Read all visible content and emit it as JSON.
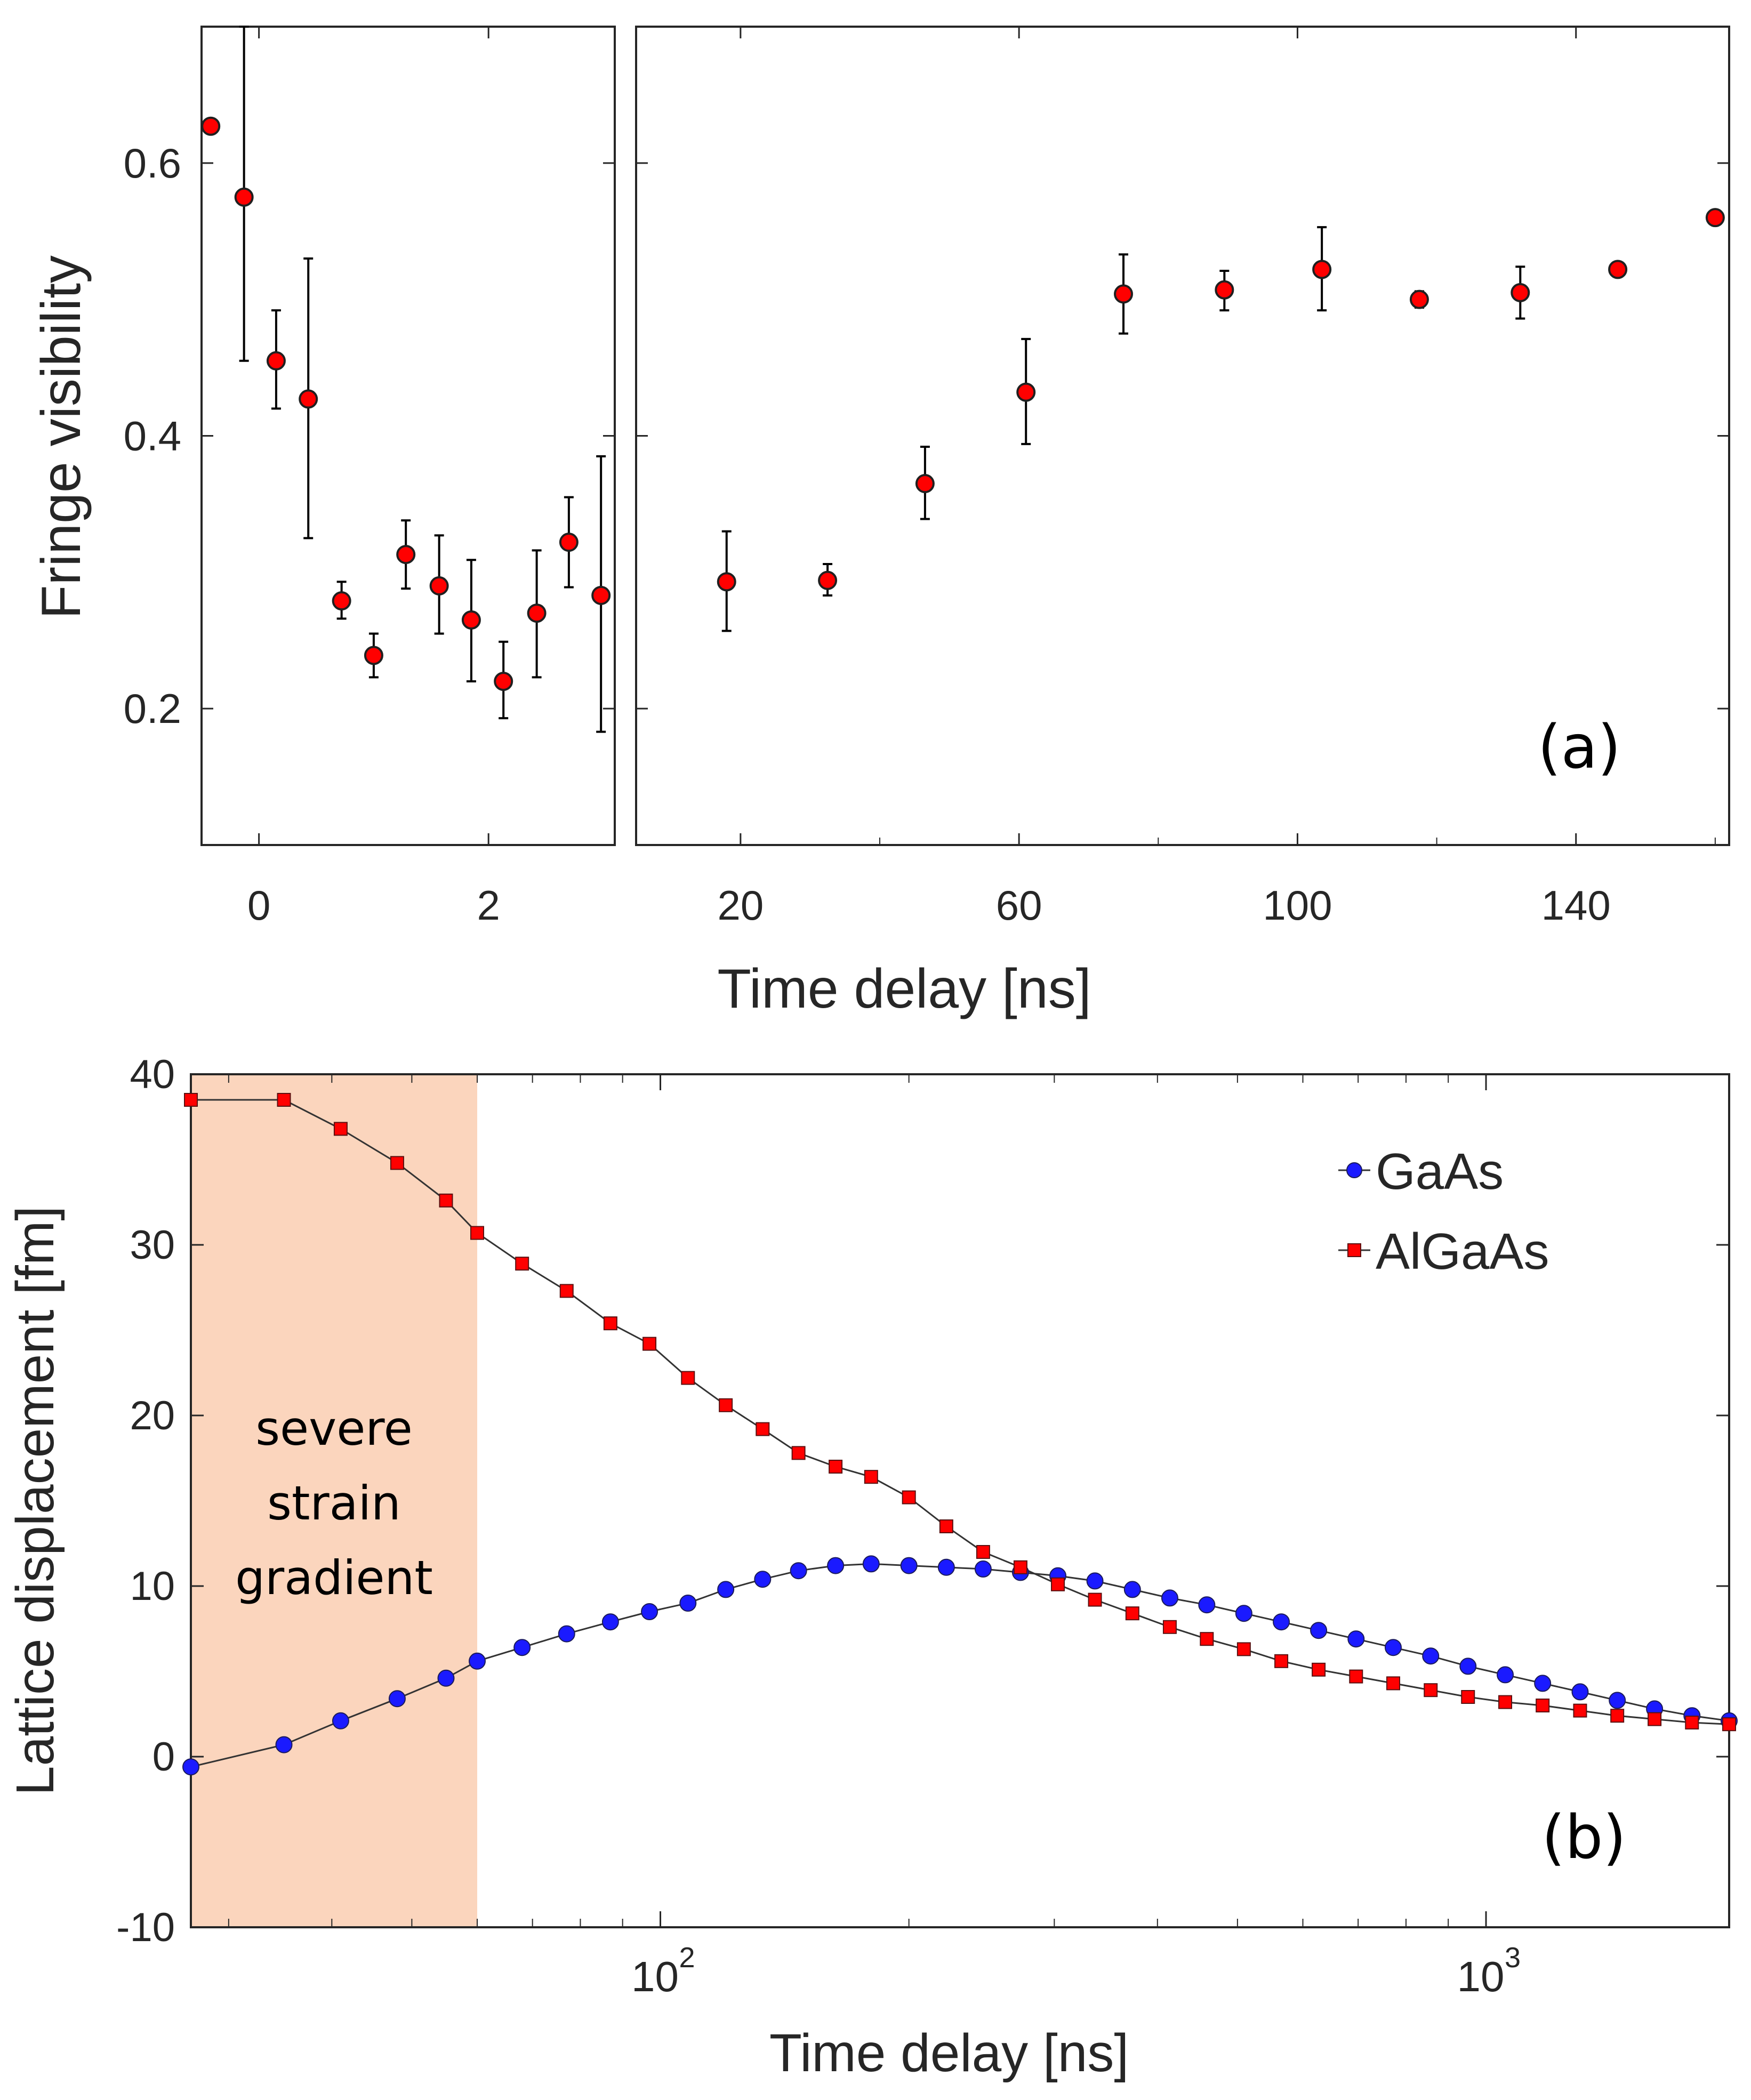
{
  "colors": {
    "marker_red": "#ff0000",
    "marker_blue": "#1a1aff",
    "marker_edge": "#202020",
    "shade": "#fbd5bd",
    "axis": "#262626"
  },
  "chart_data": [
    {
      "id": "a",
      "type": "scatter",
      "panel_label": "(a)",
      "ylabel": "Fringe visibility",
      "xlabel": "Time delay [ns]",
      "ylim": [
        0.1,
        0.7
      ],
      "yticks": [
        0.2,
        0.4,
        0.6
      ],
      "ytick_labels": [
        "0.2",
        "0.4",
        "0.6"
      ],
      "left_segment": {
        "xlim": [
          -0.5,
          3.1
        ],
        "xticks": [
          0,
          2
        ],
        "xtick_labels": [
          "0",
          "2"
        ],
        "x": [
          -0.42,
          -0.13,
          0.15,
          0.43,
          0.72,
          1.0,
          1.28,
          1.57,
          1.85,
          2.13,
          2.42,
          2.7,
          2.98
        ],
        "y": [
          0.627,
          0.575,
          0.455,
          0.427,
          0.279,
          0.239,
          0.313,
          0.29,
          0.265,
          0.22,
          0.27,
          0.322,
          0.283
        ],
        "err_lo": [
          0.0,
          0.12,
          0.035,
          0.102,
          0.013,
          0.016,
          0.025,
          0.035,
          0.045,
          0.027,
          0.047,
          0.033,
          0.1
        ],
        "err_hi": [
          0.0,
          0.125,
          0.037,
          0.103,
          0.014,
          0.016,
          0.025,
          0.037,
          0.044,
          0.029,
          0.046,
          0.033,
          0.102
        ]
      },
      "right_segment": {
        "xlim": [
          5,
          162
        ],
        "xticks": [
          20,
          60,
          100,
          140
        ],
        "xtick_labels": [
          "20",
          "60",
          "100",
          "140"
        ],
        "x": [
          18,
          32.5,
          46.5,
          61,
          75,
          89.5,
          103.5,
          117.5,
          132,
          146,
          160
        ],
        "y": [
          0.293,
          0.294,
          0.365,
          0.432,
          0.504,
          0.507,
          0.522,
          0.5,
          0.505,
          0.522,
          0.56
        ],
        "err_lo": [
          0.036,
          0.011,
          0.026,
          0.038,
          0.029,
          0.015,
          0.03,
          0.006,
          0.019,
          0.005,
          0.004
        ],
        "err_hi": [
          0.037,
          0.012,
          0.027,
          0.039,
          0.029,
          0.014,
          0.031,
          0.006,
          0.019,
          0.005,
          0.004
        ]
      }
    },
    {
      "id": "b",
      "type": "line",
      "panel_label": "(b)",
      "ylabel": "Lattice displacement [fm]",
      "xlabel": "Time delay [ns]",
      "xscale": "log",
      "xlim": [
        27,
        1970
      ],
      "ylim": [
        -10,
        40
      ],
      "yticks": [
        -10,
        0,
        10,
        20,
        30,
        40
      ],
      "ytick_labels": [
        "-10",
        "0",
        "10",
        "20",
        "30",
        "40"
      ],
      "xticks": [
        100,
        1000
      ],
      "xtick_bases": [
        "10",
        "10"
      ],
      "xtick_exponents": [
        "2",
        "3"
      ],
      "shaded_region": {
        "x": [
          27,
          60
        ],
        "label_lines": [
          "severe",
          "strain",
          "gradient"
        ]
      },
      "legend_position": "top-right",
      "series": [
        {
          "name": "GaAs",
          "marker": "circle",
          "x": [
            27,
            35,
            41,
            48,
            55,
            60,
            68,
            77,
            87,
            97,
            108,
            120,
            133,
            147,
            163,
            180,
            200,
            222,
            246,
            273,
            303,
            336,
            373,
            414,
            459,
            509,
            565,
            627,
            696,
            772,
            857,
            951,
            1055,
            1171,
            1300,
            1442,
            1600,
            1776,
            1970
          ],
          "y": [
            -0.6,
            0.7,
            2.1,
            3.4,
            4.6,
            5.6,
            6.4,
            7.2,
            7.9,
            8.5,
            9.0,
            9.8,
            10.4,
            10.9,
            11.2,
            11.3,
            11.2,
            11.1,
            11.0,
            10.8,
            10.6,
            10.3,
            9.8,
            9.3,
            8.9,
            8.4,
            7.9,
            7.4,
            6.9,
            6.4,
            5.9,
            5.3,
            4.8,
            4.3,
            3.8,
            3.3,
            2.8,
            2.4,
            2.1
          ]
        },
        {
          "name": "AlGaAs",
          "marker": "square",
          "x": [
            27,
            35,
            41,
            48,
            55,
            60,
            68,
            77,
            87,
            97,
            108,
            120,
            133,
            147,
            163,
            180,
            200,
            222,
            246,
            273,
            303,
            336,
            373,
            414,
            459,
            509,
            565,
            627,
            696,
            772,
            857,
            951,
            1055,
            1171,
            1300,
            1442,
            1600,
            1776,
            1970
          ],
          "y": [
            38.5,
            38.5,
            36.8,
            34.8,
            32.6,
            30.7,
            28.9,
            27.3,
            25.4,
            24.2,
            22.2,
            20.6,
            19.2,
            17.8,
            17.0,
            16.4,
            15.2,
            13.5,
            12.0,
            11.1,
            10.1,
            9.2,
            8.4,
            7.6,
            6.9,
            6.3,
            5.6,
            5.1,
            4.7,
            4.3,
            3.9,
            3.5,
            3.2,
            3.0,
            2.7,
            2.4,
            2.2,
            2.0,
            1.9
          ]
        }
      ]
    }
  ]
}
